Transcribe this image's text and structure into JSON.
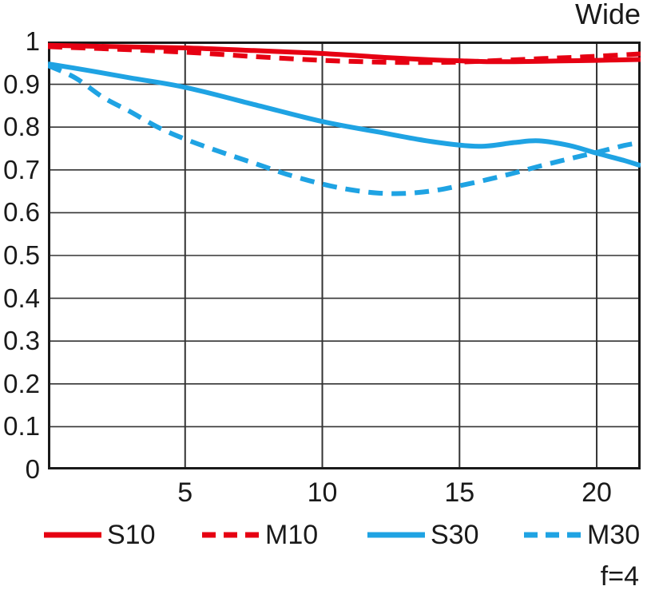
{
  "page": {
    "title": "Wide",
    "annotation": "f=4"
  },
  "chart_data": {
    "type": "line",
    "title": "Wide",
    "subtitle": "",
    "xlabel": "",
    "ylabel": "",
    "annotation": "f=4",
    "xlim": [
      0,
      21.6
    ],
    "ylim": [
      0,
      1
    ],
    "grid": true,
    "legend_position": "bottom",
    "axis_color": "#1a1a1a",
    "grid_color": "#333333",
    "x_ticks": [
      {
        "value": 5,
        "label": "5"
      },
      {
        "value": 10,
        "label": "10"
      },
      {
        "value": 15,
        "label": "15"
      },
      {
        "value": 20,
        "label": "20"
      }
    ],
    "y_ticks": [
      {
        "value": 0,
        "label": "0"
      },
      {
        "value": 0.1,
        "label": "0.1"
      },
      {
        "value": 0.2,
        "label": "0.2"
      },
      {
        "value": 0.3,
        "label": "0.3"
      },
      {
        "value": 0.4,
        "label": "0.4"
      },
      {
        "value": 0.5,
        "label": "0.5"
      },
      {
        "value": 0.6,
        "label": "0.6"
      },
      {
        "value": 0.7,
        "label": "0.7"
      },
      {
        "value": 0.8,
        "label": "0.8"
      },
      {
        "value": 0.9,
        "label": "0.9"
      },
      {
        "value": 1,
        "label": "1"
      }
    ],
    "series": [
      {
        "name": "S10",
        "color": "#e60012",
        "style": "solid",
        "points": [
          [
            0,
            0.991
          ],
          [
            2.5,
            0.988
          ],
          [
            5,
            0.985
          ],
          [
            7.5,
            0.979
          ],
          [
            10,
            0.972
          ],
          [
            12.5,
            0.962
          ],
          [
            14,
            0.957
          ],
          [
            15,
            0.955
          ],
          [
            16,
            0.953
          ],
          [
            17,
            0.953
          ],
          [
            18,
            0.954
          ],
          [
            19,
            0.955
          ],
          [
            20,
            0.956
          ],
          [
            21.6,
            0.958
          ]
        ]
      },
      {
        "name": "M10",
        "color": "#e60012",
        "style": "dashed",
        "points": [
          [
            0,
            0.988
          ],
          [
            2.5,
            0.982
          ],
          [
            5,
            0.975
          ],
          [
            7.5,
            0.965
          ],
          [
            10,
            0.956
          ],
          [
            12,
            0.952
          ],
          [
            13.5,
            0.951
          ],
          [
            15,
            0.952
          ],
          [
            16.5,
            0.956
          ],
          [
            18,
            0.96
          ],
          [
            19.5,
            0.964
          ],
          [
            21.6,
            0.971
          ]
        ]
      },
      {
        "name": "S30",
        "color": "#1fa3e3",
        "style": "solid",
        "points": [
          [
            0,
            0.948
          ],
          [
            1.5,
            0.932
          ],
          [
            3,
            0.915
          ],
          [
            5,
            0.893
          ],
          [
            7.5,
            0.853
          ],
          [
            10,
            0.813
          ],
          [
            12,
            0.789
          ],
          [
            14,
            0.766
          ],
          [
            15.7,
            0.755
          ],
          [
            17,
            0.764
          ],
          [
            17.9,
            0.768
          ],
          [
            19,
            0.757
          ],
          [
            20,
            0.739
          ],
          [
            21,
            0.722
          ],
          [
            21.6,
            0.71
          ]
        ]
      },
      {
        "name": "M30",
        "color": "#1fa3e3",
        "style": "dashed",
        "points": [
          [
            0,
            0.944
          ],
          [
            1,
            0.915
          ],
          [
            2,
            0.87
          ],
          [
            3,
            0.836
          ],
          [
            4,
            0.8
          ],
          [
            5,
            0.772
          ],
          [
            6.2,
            0.744
          ],
          [
            7.5,
            0.716
          ],
          [
            8.7,
            0.69
          ],
          [
            10,
            0.667
          ],
          [
            11,
            0.654
          ],
          [
            12,
            0.646
          ],
          [
            13,
            0.645
          ],
          [
            14,
            0.651
          ],
          [
            15,
            0.663
          ],
          [
            16,
            0.677
          ],
          [
            17,
            0.693
          ],
          [
            18,
            0.71
          ],
          [
            19,
            0.726
          ],
          [
            20,
            0.741
          ],
          [
            21,
            0.757
          ],
          [
            21.6,
            0.764
          ]
        ]
      }
    ]
  }
}
